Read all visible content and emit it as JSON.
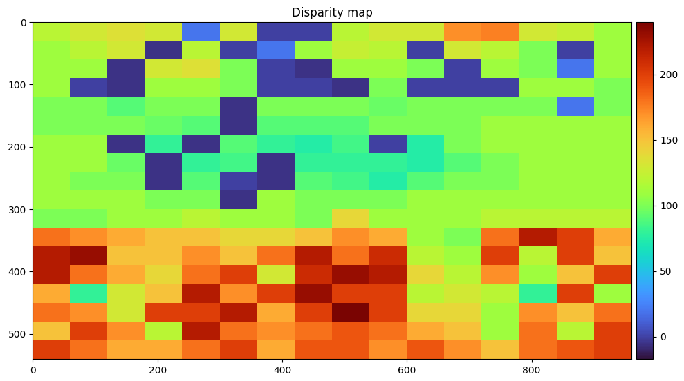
{
  "chart_data": {
    "type": "heatmap",
    "title": "Disparity map",
    "xlim": [
      0,
      960
    ],
    "ylim": [
      540,
      0
    ],
    "xticks": [
      0,
      200,
      400,
      600,
      800
    ],
    "yticks": [
      0,
      100,
      200,
      300,
      400,
      500
    ],
    "grid": false,
    "cells": [
      [
        120,
        130,
        135,
        130,
        20,
        130,
        0,
        0,
        120,
        130,
        130,
        170,
        175,
        130,
        125,
        110
      ],
      [
        110,
        120,
        130,
        -5,
        120,
        0,
        20,
        110,
        125,
        120,
        0,
        130,
        120,
        100,
        0,
        110
      ],
      [
        110,
        110,
        -5,
        130,
        135,
        100,
        0,
        -5,
        110,
        110,
        100,
        0,
        110,
        100,
        20,
        110
      ],
      [
        110,
        0,
        -5,
        110,
        110,
        100,
        0,
        0,
        -5,
        100,
        0,
        0,
        0,
        110,
        110,
        100
      ],
      [
        100,
        100,
        90,
        100,
        100,
        -5,
        100,
        100,
        100,
        95,
        100,
        100,
        100,
        100,
        20,
        100
      ],
      [
        100,
        100,
        100,
        95,
        90,
        -5,
        90,
        90,
        90,
        100,
        100,
        100,
        110,
        110,
        110,
        110
      ],
      [
        110,
        110,
        -5,
        80,
        -5,
        90,
        80,
        75,
        85,
        0,
        75,
        100,
        110,
        110,
        110,
        110
      ],
      [
        110,
        110,
        95,
        -5,
        80,
        85,
        -5,
        80,
        80,
        80,
        75,
        90,
        100,
        110,
        110,
        110
      ],
      [
        110,
        100,
        100,
        -5,
        90,
        0,
        -5,
        90,
        85,
        75,
        90,
        100,
        100,
        110,
        110,
        110
      ],
      [
        110,
        110,
        110,
        100,
        100,
        -5,
        110,
        100,
        100,
        100,
        110,
        110,
        110,
        110,
        110,
        110
      ],
      [
        100,
        100,
        110,
        110,
        120,
        110,
        110,
        100,
        140,
        110,
        110,
        110,
        120,
        120,
        120,
        120
      ],
      [
        180,
        170,
        160,
        150,
        150,
        140,
        140,
        150,
        170,
        160,
        110,
        100,
        180,
        220,
        200,
        160
      ],
      [
        220,
        230,
        150,
        150,
        170,
        150,
        180,
        220,
        180,
        210,
        120,
        110,
        200,
        120,
        200,
        150
      ],
      [
        220,
        180,
        160,
        140,
        180,
        200,
        130,
        210,
        230,
        220,
        140,
        120,
        170,
        110,
        150,
        200
      ],
      [
        160,
        80,
        130,
        150,
        220,
        170,
        200,
        230,
        200,
        200,
        120,
        130,
        120,
        80,
        200,
        110
      ],
      [
        180,
        170,
        130,
        200,
        200,
        220,
        160,
        200,
        240,
        200,
        140,
        140,
        110,
        170,
        150,
        180
      ],
      [
        150,
        200,
        170,
        120,
        220,
        180,
        170,
        180,
        190,
        180,
        160,
        150,
        110,
        180,
        120,
        200
      ],
      [
        200,
        180,
        160,
        160,
        180,
        200,
        160,
        190,
        190,
        170,
        190,
        170,
        150,
        180,
        190,
        200
      ]
    ],
    "color_range": [
      -17,
      240
    ],
    "color_ticks": [
      0,
      50,
      100,
      150,
      200
    ]
  }
}
